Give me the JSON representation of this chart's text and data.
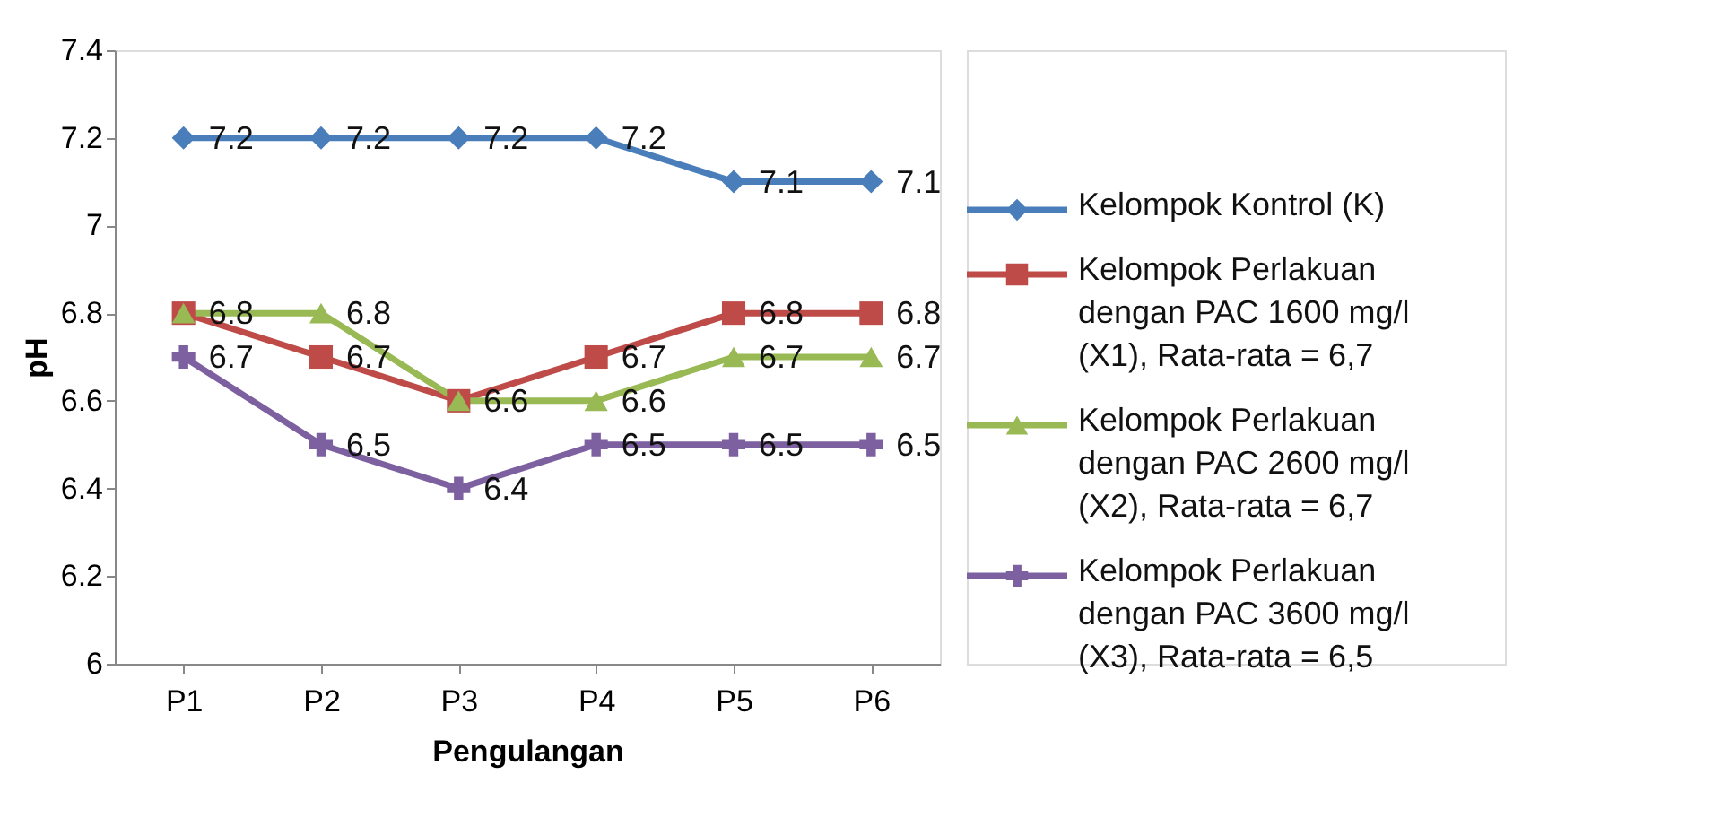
{
  "chart_data": {
    "type": "line",
    "xlabel": "Pengulangan",
    "ylabel": "pH",
    "categories": [
      "P1",
      "P2",
      "P3",
      "P4",
      "P5",
      "P6"
    ],
    "series": [
      {
        "name": "Kelompok Kontrol (K)",
        "color": "#4a7ebb",
        "marker": "diamond",
        "values": [
          7.2,
          7.2,
          7.2,
          7.2,
          7.1,
          7.1
        ],
        "value_labels": [
          "7.2",
          "7.2",
          "7.2",
          "7.2",
          "7.1",
          "7.1"
        ]
      },
      {
        "name": "Kelompok Perlakuan dengan PAC 1600 mg/l (X1), Rata-rata = 6,7",
        "color": "#be4b48",
        "marker": "square",
        "values": [
          6.8,
          6.7,
          6.6,
          6.7,
          6.8,
          6.8
        ],
        "value_labels": [
          "6.8",
          "6.7",
          "6.6",
          "6.7",
          "6.8",
          "6.8"
        ]
      },
      {
        "name": "Kelompok Perlakuan dengan PAC 2600 mg/l (X2), Rata-rata = 6,7",
        "color": "#98b954",
        "marker": "triangle",
        "values": [
          6.8,
          6.8,
          6.6,
          6.6,
          6.7,
          6.7
        ],
        "value_labels": [
          null,
          "6.8",
          null,
          "6.6",
          "6.7",
          "6.7"
        ]
      },
      {
        "name": "Kelompok Perlakuan dengan PAC 3600 mg/l (X3), Rata-rata = 6,5",
        "color": "#7d60a0",
        "marker": "cross",
        "values": [
          6.7,
          6.5,
          6.4,
          6.5,
          6.5,
          6.5
        ],
        "value_labels": [
          "6.7",
          "6.5",
          "6.4",
          "6.5",
          "6.5",
          "6.5"
        ]
      }
    ],
    "ylim": [
      6,
      7.4
    ],
    "yticks": [
      6,
      6.2,
      6.4,
      6.6,
      6.8,
      7,
      7.2,
      7.4
    ],
    "legend": "right",
    "grid": false,
    "line_style": "solid"
  }
}
